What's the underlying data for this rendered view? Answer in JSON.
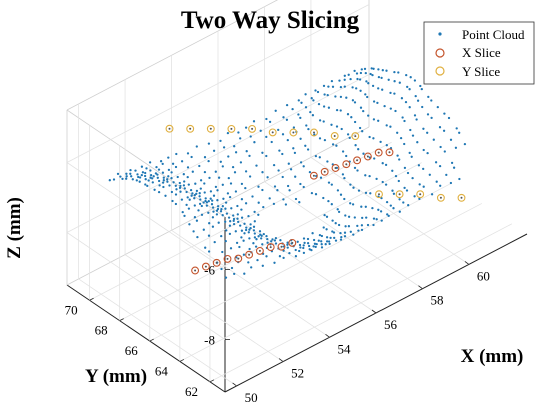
{
  "chart_data": {
    "type": "scatter",
    "title": "Two Way Slicing",
    "xlabel": "X (mm)",
    "ylabel": "Y (mm)",
    "zlabel": "Z (mm)",
    "x_ticks": [
      50,
      52,
      54,
      56,
      58,
      60
    ],
    "y_ticks": [
      62,
      64,
      66,
      68,
      70
    ],
    "z_ticks": [
      -8,
      -6
    ],
    "xlim": [
      49.5,
      62.5
    ],
    "ylim": [
      61,
      71.5
    ],
    "zlim": [
      -9.5,
      -4.5
    ],
    "grid": true,
    "legend_position": "top-right",
    "colors": {
      "point_cloud": "#1f77b4",
      "x_slice": "#c4542c",
      "y_slice": "#e0b040",
      "axis": "#222222",
      "grid": "#e3e3e3"
    },
    "legend": [
      {
        "key": "point_cloud",
        "label": "Point Cloud",
        "marker": "dot"
      },
      {
        "key": "x_slice",
        "label": "X Slice",
        "marker": "circle"
      },
      {
        "key": "y_slice",
        "label": "Y Slice",
        "marker": "circle"
      }
    ],
    "series": [
      {
        "name": "X Slice",
        "points": [
          [
            51.0,
            65.3,
            -7.8
          ],
          [
            51.4,
            65.2,
            -7.8
          ],
          [
            51.8,
            65.1,
            -7.8
          ],
          [
            52.2,
            65.0,
            -7.8
          ],
          [
            52.6,
            64.9,
            -7.9
          ],
          [
            53.0,
            64.8,
            -7.9
          ],
          [
            53.4,
            64.7,
            -7.9
          ],
          [
            53.8,
            64.6,
            -7.9
          ],
          [
            54.2,
            64.5,
            -8.0
          ],
          [
            54.6,
            64.4,
            -8.0
          ],
          [
            55.4,
            64.2,
            -6.3
          ],
          [
            55.8,
            64.1,
            -6.3
          ],
          [
            56.2,
            64.0,
            -6.3
          ],
          [
            56.6,
            63.9,
            -6.3
          ],
          [
            57.0,
            63.8,
            -6.3
          ],
          [
            57.4,
            63.7,
            -6.3
          ],
          [
            57.8,
            63.6,
            -6.3
          ],
          [
            58.2,
            63.5,
            -6.4
          ]
        ]
      },
      {
        "name": "Y Slice",
        "points": [
          [
            53.2,
            70.4,
            -6.0
          ],
          [
            53.7,
            69.8,
            -6.0
          ],
          [
            54.2,
            69.2,
            -6.0
          ],
          [
            54.7,
            68.6,
            -6.0
          ],
          [
            55.2,
            68.0,
            -6.0
          ],
          [
            55.7,
            67.4,
            -6.1
          ],
          [
            56.2,
            66.8,
            -6.1
          ],
          [
            56.7,
            66.2,
            -6.1
          ],
          [
            57.2,
            65.6,
            -6.2
          ],
          [
            57.7,
            65.0,
            -6.2
          ],
          [
            58.2,
            64.2,
            -7.8
          ],
          [
            58.7,
            63.6,
            -7.8
          ],
          [
            59.2,
            63.0,
            -7.8
          ],
          [
            59.7,
            62.4,
            -7.9
          ],
          [
            60.2,
            61.8,
            -7.9
          ]
        ]
      }
    ]
  }
}
